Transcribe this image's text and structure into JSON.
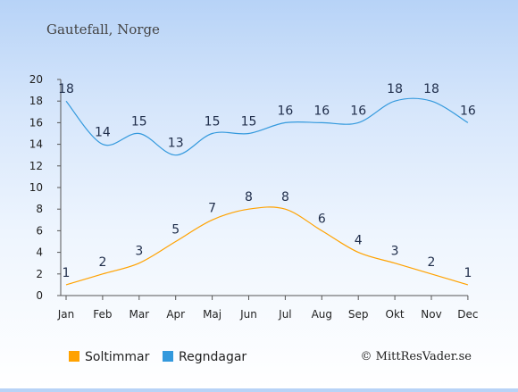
{
  "chart_data": {
    "type": "line",
    "title": "Gautefall, Norge",
    "categories": [
      "Jan",
      "Feb",
      "Mar",
      "Apr",
      "Maj",
      "Jun",
      "Jul",
      "Aug",
      "Sep",
      "Okt",
      "Nov",
      "Dec"
    ],
    "y_ticks": [
      "0",
      "2",
      "4",
      "6",
      "8",
      "10",
      "12",
      "14",
      "16",
      "18",
      "20"
    ],
    "ylim": [
      0,
      20
    ],
    "grid": false,
    "series": [
      {
        "name": "Soltimmar",
        "color": "#ffa200",
        "values": [
          1,
          2,
          3,
          5,
          7,
          8,
          8,
          6,
          4,
          3,
          2,
          1
        ],
        "labels": [
          "1",
          "2",
          "3",
          "5",
          "7",
          "8",
          "8",
          "6",
          "4",
          "3",
          "2",
          "1"
        ]
      },
      {
        "name": "Regndagar",
        "color": "#3399dd",
        "values": [
          18,
          14,
          15,
          13,
          15,
          15,
          16,
          16,
          16,
          18,
          18,
          16
        ],
        "labels": [
          "18",
          "14",
          "15",
          "13",
          "15",
          "15",
          "16",
          "16",
          "16",
          "18",
          "18",
          "16"
        ]
      }
    ],
    "legend": {
      "placement": "bottom-left",
      "items": [
        {
          "label": "Soltimmar",
          "color": "#ffa200"
        },
        {
          "label": "Regndagar",
          "color": "#3399dd"
        }
      ]
    },
    "credit": "© MittResVader.se"
  }
}
